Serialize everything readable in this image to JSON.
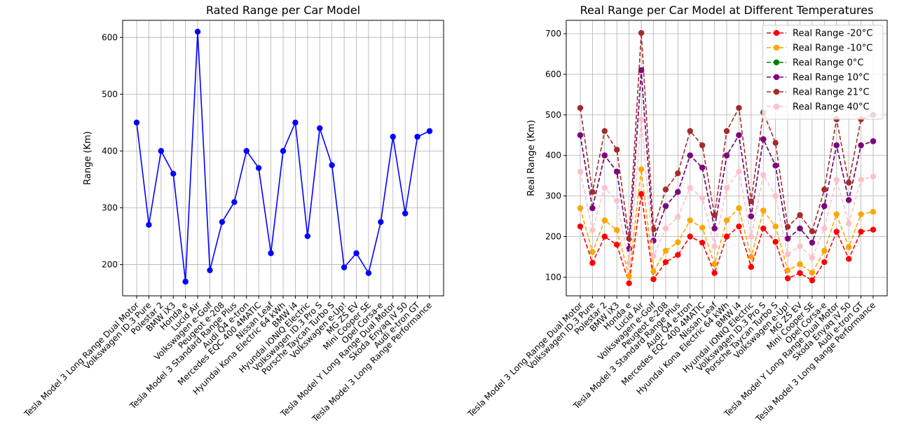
{
  "chart_data": [
    {
      "type": "line",
      "title": "Rated Range per Car Model",
      "xlabel": "",
      "ylabel": "Range (Km)",
      "ylim": [
        145,
        630
      ],
      "yticks": [
        200,
        300,
        400,
        500,
        600
      ],
      "grid": true,
      "categories": [
        "Tesla Model 3 Long Range Dual Motor",
        "Volkswagen ID.3 Pure",
        "Polestar 2",
        "BMW iX3",
        "Honda e",
        "Lucid Air",
        "Volkswagen e-Golf",
        "Peugeot e-208",
        "Tesla Model 3 Standard Range Plus",
        "Audi Q4 e-tron",
        "Mercedes EQC 400 4MATIC",
        "Nissan Leaf",
        "Hyundai Kona Electric 64 kWh",
        "BMW i4",
        "Hyundai IONIQ Electric",
        "Volkswagen ID.3 Pro S",
        "Porsche Taycan Turbo S",
        "Volkswagen e-Up!",
        "MG ZS EV",
        "Mini Cooper SE",
        "Opel Corsa-e",
        "Tesla Model Y Long Range Dual Motor",
        "Skoda Enyaq iV 50",
        "Audi e-tron GT",
        "Tesla Model 3 Long Range Performance"
      ],
      "series": [
        {
          "color": "#0000ff",
          "values": [
            450,
            270,
            400,
            360,
            170,
            610,
            190,
            275,
            310,
            400,
            370,
            220,
            400,
            450,
            250,
            440,
            375,
            195,
            220,
            185,
            275,
            425,
            290,
            425,
            435
          ]
        }
      ]
    },
    {
      "type": "line",
      "title": "Real Range per Car Model at Different Temperatures",
      "xlabel": "",
      "ylabel": "Real Range (Km)",
      "ylim": [
        54,
        733
      ],
      "yticks": [
        100,
        200,
        300,
        400,
        500,
        600,
        700
      ],
      "grid": true,
      "legend_position": "top-right",
      "categories": [
        "Tesla Model 3 Long Range Dual Motor",
        "Volkswagen ID.3 Pure",
        "Polestar 2",
        "BMW iX3",
        "Honda e",
        "Lucid Air",
        "Volkswagen e-Golf",
        "Peugeot e-208",
        "Tesla Model 3 Standard Range Plus",
        "Audi Q4 e-tron",
        "Mercedes EQC 400 4MATIC",
        "Nissan Leaf",
        "Hyundai Kona Electric 64 kWh",
        "BMW i4",
        "Hyundai IONIQ Electric",
        "Volkswagen ID.3 Pro S",
        "Porsche Taycan Turbo S",
        "Volkswagen e-Up!",
        "MG ZS EV",
        "Mini Cooper SE",
        "Opel Corsa-e",
        "Tesla Model Y Long Range Dual Motor",
        "Skoda Enyaq iV 50",
        "Audi e-tron GT",
        "Tesla Model 3 Long Range Performance"
      ],
      "series": [
        {
          "name": "Real Range -20°C",
          "color": "#ff0000",
          "values": [
            225,
            135,
            200,
            180,
            85,
            305,
            95,
            137,
            155,
            200,
            185,
            110,
            200,
            225,
            125,
            220,
            187,
            97,
            110,
            92,
            137,
            212,
            145,
            212,
            217
          ]
        },
        {
          "name": "Real Range -10°C",
          "color": "#ffa500",
          "values": [
            270,
            162,
            240,
            216,
            102,
            366,
            114,
            165,
            186,
            240,
            222,
            132,
            240,
            270,
            150,
            264,
            225,
            117,
            132,
            111,
            165,
            255,
            174,
            255,
            261
          ]
        },
        {
          "name": "Real Range 0°C",
          "color": "#008000",
          "values": [
            450,
            270,
            400,
            360,
            170,
            610,
            190,
            275,
            310,
            400,
            370,
            220,
            400,
            450,
            250,
            440,
            375,
            195,
            220,
            185,
            275,
            425,
            290,
            425,
            435
          ]
        },
        {
          "name": "Real Range 10°C",
          "color": "#800080",
          "values": [
            450,
            270,
            400,
            360,
            170,
            610,
            190,
            275,
            310,
            400,
            370,
            220,
            400,
            450,
            250,
            440,
            375,
            195,
            220,
            185,
            275,
            425,
            290,
            425,
            435
          ]
        },
        {
          "name": "Real Range 21°C",
          "color": "#a52a2a",
          "values": [
            517,
            310,
            460,
            414,
            195,
            702,
            218,
            316,
            356,
            460,
            425,
            253,
            460,
            517,
            287,
            506,
            431,
            224,
            253,
            213,
            316,
            489,
            333,
            489,
            500
          ]
        },
        {
          "name": "Real Range 40°C",
          "color": "#ffc0cb",
          "values": [
            360,
            216,
            320,
            288,
            136,
            488,
            152,
            220,
            248,
            320,
            296,
            176,
            320,
            360,
            200,
            352,
            300,
            156,
            176,
            148,
            220,
            340,
            232,
            340,
            348
          ]
        }
      ]
    }
  ]
}
